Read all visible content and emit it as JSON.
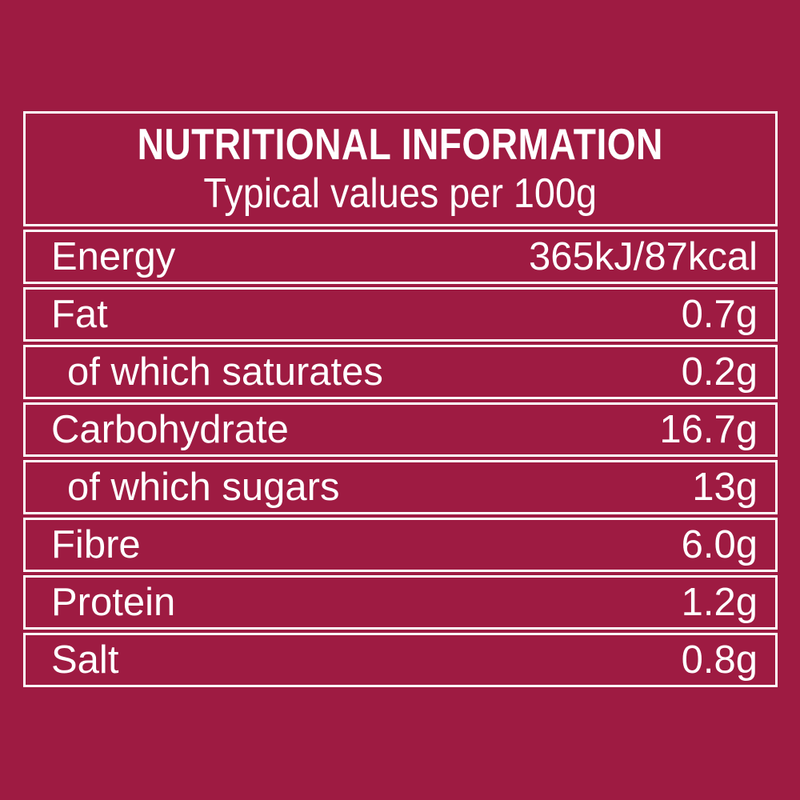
{
  "colors": {
    "background": "#9E1B42",
    "border": "#FFFFFF",
    "text": "#FFFFFF"
  },
  "header": {
    "title": "NUTRITIONAL INFORMATION",
    "subtitle": "Typical values per 100g"
  },
  "rows": [
    {
      "name": "Energy",
      "value": "365kJ/87kcal"
    },
    {
      "name": "Fat",
      "value": "0.7g"
    },
    {
      "name": "of which saturates",
      "value": "0.2g"
    },
    {
      "name": "Carbohydrate",
      "value": "16.7g"
    },
    {
      "name": "of which sugars",
      "value": "13g"
    },
    {
      "name": "Fibre",
      "value": "6.0g"
    },
    {
      "name": "Protein",
      "value": "1.2g"
    },
    {
      "name": "Salt",
      "value": "0.8g"
    }
  ]
}
